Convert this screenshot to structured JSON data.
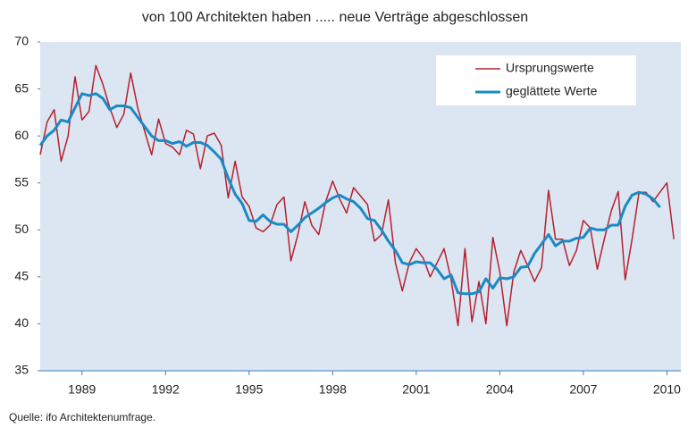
{
  "chart_data": {
    "type": "line",
    "title": "von 100 Architekten haben ..... neue Verträge abgeschlossen",
    "source": "Quelle: ifo Architektenumfrage.",
    "x": [
      1988,
      1988.25,
      1988.5,
      1988.75,
      1989,
      1989.25,
      1989.5,
      1989.75,
      1990,
      1990.25,
      1990.5,
      1990.75,
      1991,
      1991.25,
      1991.5,
      1991.75,
      1992,
      1992.25,
      1992.5,
      1992.75,
      1993,
      1993.25,
      1993.5,
      1993.75,
      1994,
      1994.25,
      1994.5,
      1994.75,
      1995,
      1995.25,
      1995.5,
      1995.75,
      1996,
      1996.25,
      1996.5,
      1996.75,
      1997,
      1997.25,
      1997.5,
      1997.75,
      1998,
      1998.25,
      1998.5,
      1998.75,
      1999,
      1999.25,
      1999.5,
      1999.75,
      2000,
      2000.25,
      2000.5,
      2000.75,
      2001,
      2001.25,
      2001.5,
      2001.75,
      2002,
      2002.25,
      2002.5,
      2002.75,
      2003,
      2003.25,
      2003.5,
      2003.75,
      2004,
      2004.25,
      2004.5,
      2004.75,
      2005,
      2005.25,
      2005.5,
      2005.75,
      2006,
      2006.25,
      2006.5,
      2006.75,
      2007,
      2007.25,
      2007.5,
      2007.75,
      2008,
      2008.25,
      2008.5,
      2008.75,
      2009,
      2009.25,
      2009.5,
      2009.75,
      2010,
      2010.25,
      2010.5,
      2010.75
    ],
    "series": [
      {
        "name": "Ursprungswerte",
        "color": "#b5202e",
        "width": 1.5,
        "values": [
          58,
          61.5,
          62.8,
          57.3,
          60,
          66.3,
          61.7,
          62.6,
          67.5,
          65.5,
          63,
          60.9,
          62.3,
          66.7,
          63,
          60.5,
          58,
          61.8,
          59.2,
          58.8,
          58,
          60.6,
          60.2,
          56.5,
          60,
          60.3,
          59,
          53.4,
          57.3,
          53.5,
          52.5,
          50.2,
          49.8,
          50.5,
          52.7,
          53.5,
          46.7,
          49.5,
          53,
          50.5,
          49.5,
          53,
          55.2,
          53.3,
          51.8,
          54.5,
          53.6,
          52.7,
          48.8,
          49.5,
          53.2,
          46.5,
          43.5,
          46.5,
          48,
          47,
          45,
          46.5,
          48,
          44.8,
          39.8,
          48,
          40.2,
          44.5,
          40,
          49.2,
          45.5,
          39.8,
          45.5,
          47.8,
          46.2,
          44.5,
          46,
          54.2,
          49,
          49,
          46.2,
          47.8,
          51,
          50.2,
          45.8,
          49,
          52,
          54.1,
          44.7,
          49,
          54,
          54,
          53,
          54,
          55,
          49
        ]
      },
      {
        "name": "geglättete Werte",
        "color": "#1a8ac6",
        "width": 3,
        "values": [
          59,
          60,
          60.6,
          61.7,
          61.5,
          63,
          64.5,
          64.3,
          64.5,
          64,
          62.8,
          63.2,
          63.2,
          63,
          62,
          61,
          60,
          59.5,
          59.5,
          59.2,
          59.4,
          58.9,
          59.3,
          59.3,
          59,
          58.3,
          57.5,
          55.5,
          53.8,
          52.8,
          51,
          50.9,
          51.6,
          50.9,
          50.6,
          50.6,
          49.8,
          50.5,
          51.3,
          51.8,
          52.3,
          52.9,
          53.4,
          53.7,
          53.3,
          53,
          52.3,
          51.2,
          51,
          50,
          48.8,
          47.8,
          46.5,
          46.3,
          46.6,
          46.5,
          46.5,
          45.8,
          44.8,
          45.2,
          43.3,
          43.2,
          43.2,
          43.4,
          44.8,
          43.8,
          44.9,
          44.8,
          45,
          46,
          46.1,
          47.5,
          48.5,
          49.5,
          48.3,
          48.8,
          48.8,
          49.1,
          49.2,
          50.2,
          50,
          50,
          50.5,
          50.5,
          52.5,
          53.7,
          54,
          53.8,
          53.3,
          52.4,
          null,
          null
        ]
      }
    ],
    "xlim": [
      1988,
      2011
    ],
    "xticks": [
      {
        "value": 1989.5,
        "label": "1989"
      },
      {
        "value": 1992.5,
        "label": "1992"
      },
      {
        "value": 1995.5,
        "label": "1995"
      },
      {
        "value": 1998.5,
        "label": "1998"
      },
      {
        "value": 2001.5,
        "label": "2001"
      },
      {
        "value": 2004.5,
        "label": "2004"
      },
      {
        "value": 2007.5,
        "label": "2007"
      },
      {
        "value": 2010.5,
        "label": "2010"
      }
    ],
    "ylim": [
      35,
      70
    ],
    "yticks": [
      35,
      40,
      45,
      50,
      55,
      60,
      65,
      70
    ],
    "legend": "top-right",
    "background": "#dce6f2"
  }
}
